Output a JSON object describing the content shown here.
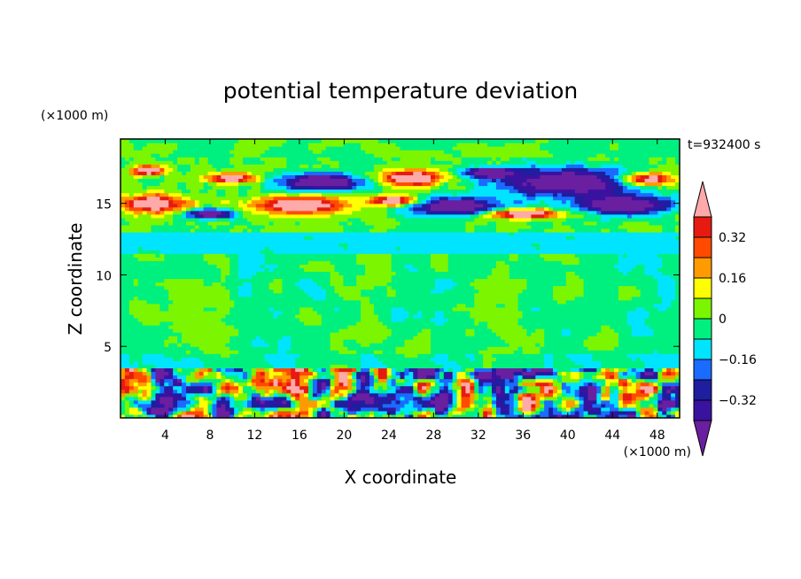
{
  "chart_data": {
    "type": "heatmap",
    "title": "potential temperature deviation",
    "xlabel": "X coordinate",
    "ylabel": "Z coordinate",
    "x_unit": "(×1000 m)",
    "y_unit": "(×1000 m)",
    "time_label": "t=932400 s",
    "xlim": [
      0,
      50
    ],
    "ylim": [
      0,
      19.5
    ],
    "x_ticks": [
      4,
      8,
      12,
      16,
      20,
      24,
      28,
      32,
      36,
      40,
      44,
      48
    ],
    "y_ticks": [
      5,
      10,
      15
    ],
    "colorbar": {
      "levels": [
        -0.4,
        -0.32,
        -0.24,
        -0.16,
        -0.08,
        0,
        0.08,
        0.16,
        0.24,
        0.32,
        0.4
      ],
      "tick_values": [
        0.32,
        0.16,
        0,
        -0.16,
        -0.32
      ],
      "tick_labels": [
        "0.32",
        "0.16",
        "0",
        "−0.16",
        "−0.32"
      ],
      "colors_low_to_high": [
        "#6a1fa0",
        "#3a12a0",
        "#1e1e9e",
        "#1a6bff",
        "#00e4ff",
        "#00f080",
        "#7cf500",
        "#ffff00",
        "#ff9a00",
        "#ff4a00",
        "#e61a10",
        "#ffaaaa"
      ]
    },
    "layers_description": [
      {
        "z_range": [
          0,
          3.6
        ],
        "pattern": "mixed positive and negative cells (boundary layer)"
      },
      {
        "z_range": [
          3.6,
          11.5
        ],
        "pattern": "near zero, slightly negative to slightly positive"
      },
      {
        "z_range": [
          11.5,
          13
        ],
        "pattern": "negative band (-0.16 to -0.08)"
      },
      {
        "z_range": [
          13,
          18
        ],
        "pattern": "alternating strong positive and strong negative lenses"
      },
      {
        "z_range": [
          18,
          19.5
        ],
        "pattern": "near zero"
      }
    ]
  }
}
